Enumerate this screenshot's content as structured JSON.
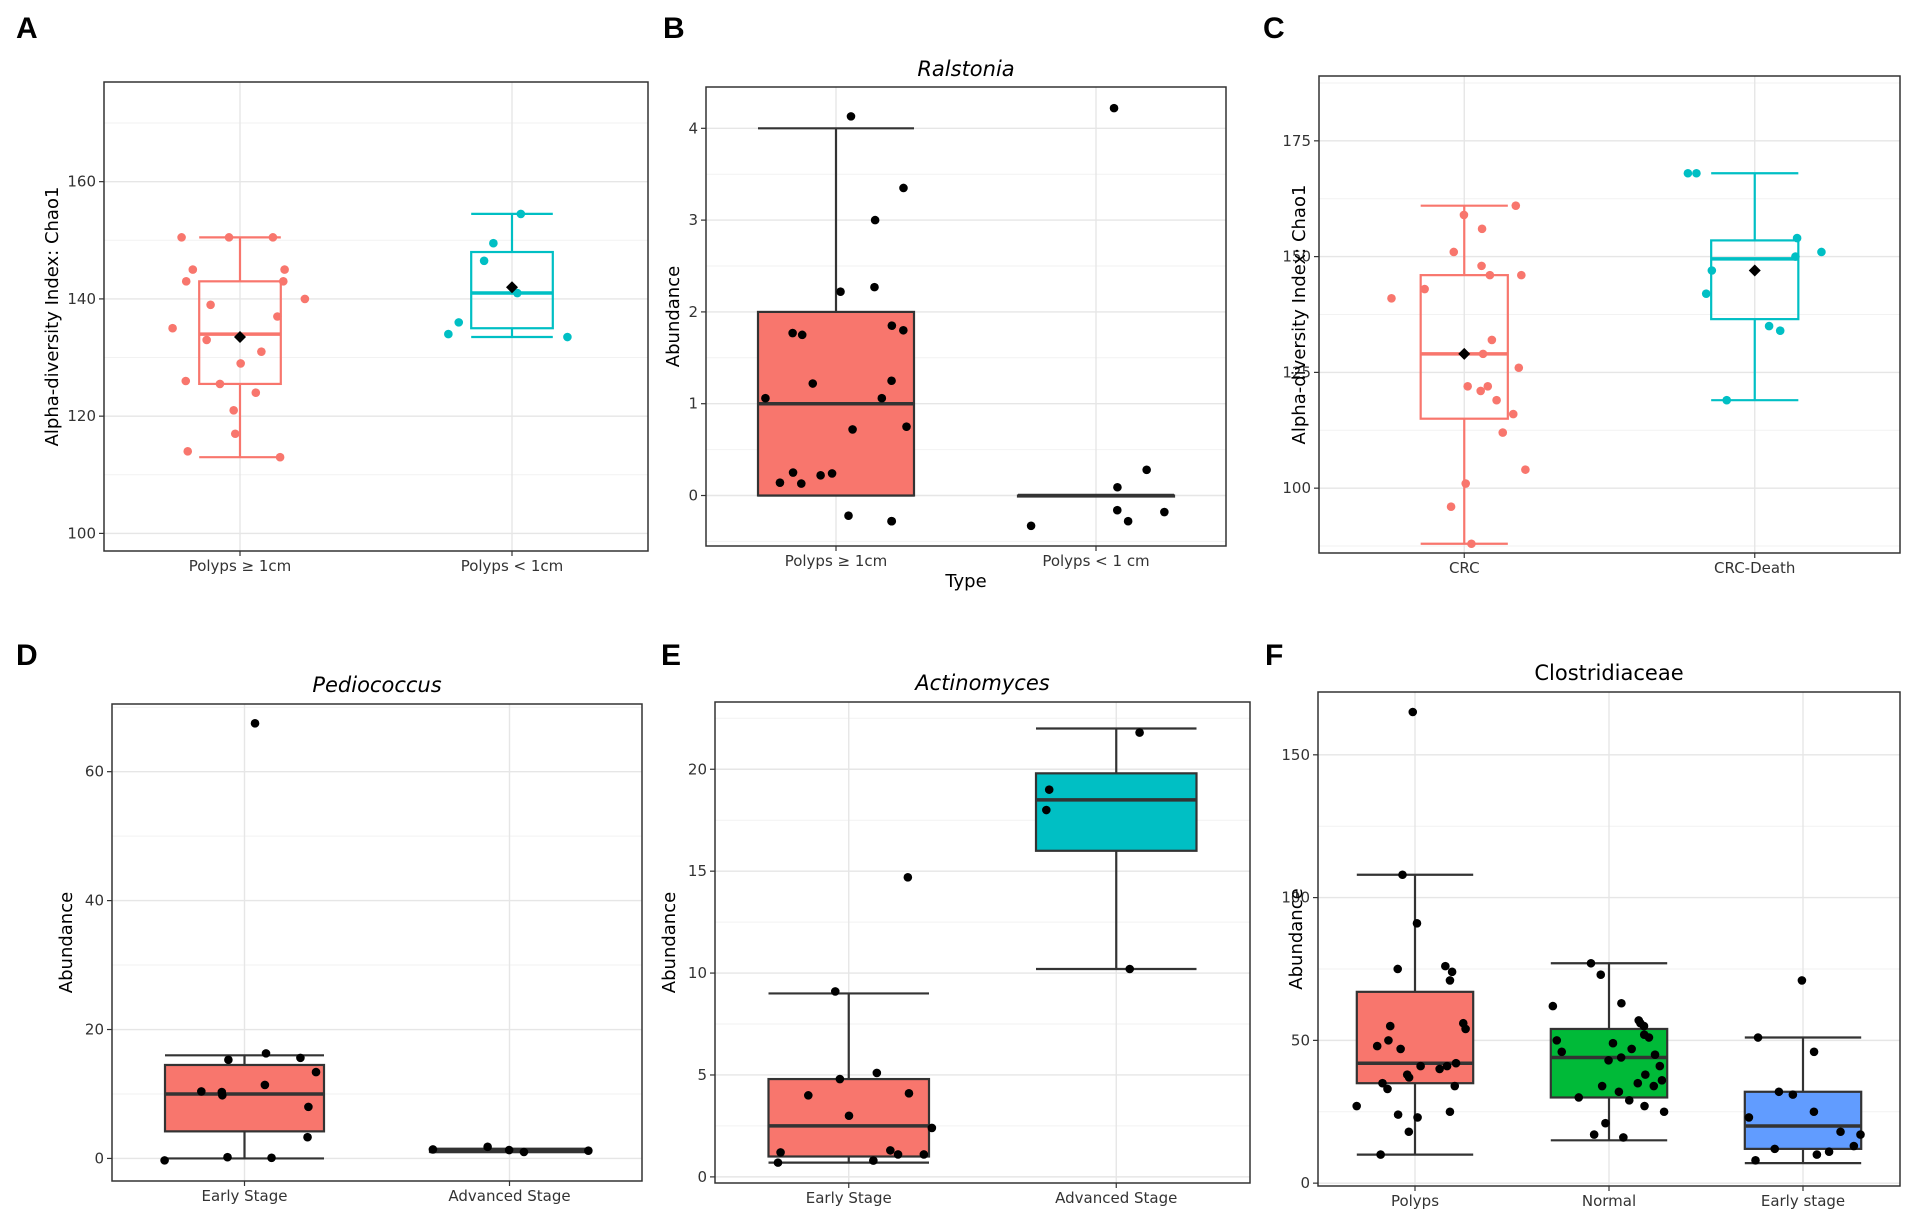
{
  "chart_data": [
    {
      "panel": "A",
      "type": "box",
      "title": "",
      "title_italic": false,
      "xlabel": "",
      "ylabel": "Alpha-diversity Index: Chao1",
      "ylim": [
        97,
        177
      ],
      "yticks": [
        100,
        120,
        140,
        160
      ],
      "fill_boxes": false,
      "show_mean": true,
      "categories": [
        "Polyps ≥ 1cm",
        "Polyps < 1cm"
      ],
      "colors": [
        "#F8766D",
        "#00BFC4"
      ],
      "boxes": [
        {
          "min": 113,
          "q1": 125.5,
          "median": 134,
          "q3": 143,
          "max": 150.5,
          "mean": 133.5,
          "points": [
            150.5,
            150.5,
            150.5,
            145,
            145,
            143,
            143,
            140,
            139,
            137,
            135,
            133,
            131,
            129,
            126,
            125.5,
            124,
            121,
            117,
            114,
            113
          ]
        },
        {
          "min": 133.5,
          "q1": 135,
          "median": 141,
          "q3": 148,
          "max": 154.5,
          "mean": 142,
          "points": [
            154.5,
            149.5,
            146.5,
            141,
            136,
            134,
            133.5
          ]
        }
      ]
    },
    {
      "panel": "B",
      "type": "box",
      "title": "Ralstonia",
      "title_italic": true,
      "xlabel": "Type",
      "ylabel": "Abundance",
      "ylim": [
        -0.55,
        4.45
      ],
      "yticks": [
        0,
        1,
        2,
        3,
        4
      ],
      "fill_boxes": true,
      "show_mean": false,
      "categories": [
        "Polyps ≥ 1cm",
        "Polyps < 1 cm"
      ],
      "colors": [
        "#F8766D",
        "#00BFC4"
      ],
      "boxes": [
        {
          "min": 0,
          "q1": 0,
          "median": 1.0,
          "q3": 2.0,
          "max": 4.0,
          "points": [
            4.13,
            3.35,
            3.0,
            2.27,
            2.22,
            1.85,
            1.8,
            1.77,
            1.75,
            1.25,
            1.22,
            1.06,
            1.06,
            0.75,
            0.72,
            0.25,
            0.24,
            0.22,
            0.14,
            0.13,
            -0.22,
            -0.28,
            -0.28
          ]
        },
        {
          "min": 0,
          "q1": 0,
          "median": 0,
          "q3": 0,
          "max": 0,
          "points": [
            4.22,
            0.28,
            0.09,
            -0.16,
            -0.18,
            -0.28,
            -0.33
          ]
        }
      ]
    },
    {
      "panel": "C",
      "type": "box",
      "title": "",
      "title_italic": false,
      "xlabel": "",
      "ylabel": "Alpha-diversity Index: Chao1",
      "ylim": [
        86,
        189
      ],
      "yticks": [
        100,
        125,
        150,
        175
      ],
      "fill_boxes": false,
      "show_mean": true,
      "categories": [
        "CRC",
        "CRC-Death"
      ],
      "colors": [
        "#F8766D",
        "#00BFC4"
      ],
      "boxes": [
        {
          "min": 88,
          "q1": 115,
          "median": 129,
          "q3": 146,
          "max": 161,
          "mean": 129,
          "points": [
            161,
            159,
            156,
            151,
            148,
            146,
            146,
            143,
            141,
            132,
            129,
            126,
            122,
            122,
            121,
            119,
            116,
            112,
            104,
            101,
            96,
            88
          ]
        },
        {
          "min": 119,
          "q1": 136.5,
          "median": 149.5,
          "q3": 153.5,
          "max": 168,
          "mean": 147,
          "points": [
            168,
            168,
            154,
            151,
            150,
            147,
            142,
            135,
            134,
            119
          ]
        }
      ]
    },
    {
      "panel": "D",
      "type": "box",
      "title": "Pediococcus",
      "title_italic": true,
      "xlabel": "",
      "ylabel": "Abundance",
      "ylim": [
        -3.5,
        70.5
      ],
      "yticks": [
        0,
        20,
        40,
        60
      ],
      "fill_boxes": true,
      "show_mean": false,
      "categories": [
        "Early Stage",
        "Advanced Stage"
      ],
      "colors": [
        "#F8766D",
        "#00BFC4"
      ],
      "boxes": [
        {
          "min": 0,
          "q1": 4.2,
          "median": 10,
          "q3": 14.5,
          "max": 16,
          "points": [
            67.5,
            16.3,
            15.6,
            15.3,
            13.4,
            11.4,
            10.4,
            10.3,
            9.8,
            8.0,
            3.3,
            0.2,
            0.1,
            -0.3
          ]
        },
        {
          "min": 1.0,
          "q1": 1.0,
          "median": 1.1,
          "q3": 1.3,
          "max": 1.5,
          "points": [
            1.8,
            1.4,
            1.3,
            1.2,
            1.0
          ]
        }
      ]
    },
    {
      "panel": "E",
      "type": "box",
      "title": "Actinomyces",
      "title_italic": true,
      "xlabel": "",
      "ylabel": "Abundance",
      "ylim": [
        -0.3,
        23.3
      ],
      "yticks": [
        0,
        5,
        10,
        15,
        20
      ],
      "fill_boxes": true,
      "show_mean": false,
      "categories": [
        "Early Stage",
        "Advanced Stage"
      ],
      "colors": [
        "#F8766D",
        "#00BFC4"
      ],
      "boxes": [
        {
          "min": 0.7,
          "q1": 1.0,
          "median": 2.5,
          "q3": 4.8,
          "max": 9.0,
          "points": [
            14.7,
            9.1,
            5.1,
            4.8,
            4.1,
            4.0,
            3.0,
            2.4,
            1.3,
            1.2,
            1.1,
            1.1,
            0.8,
            0.7
          ]
        },
        {
          "min": 10.2,
          "q1": 16.0,
          "median": 18.5,
          "q3": 19.8,
          "max": 22.0,
          "points": [
            21.8,
            19.0,
            18.0,
            10.2
          ]
        }
      ]
    },
    {
      "panel": "F",
      "type": "box",
      "title": "Clostridiaceae",
      "title_italic": false,
      "xlabel": "",
      "ylabel": "Abundance",
      "ylim": [
        -1,
        172
      ],
      "yticks": [
        0,
        50,
        100,
        150
      ],
      "fill_boxes": true,
      "show_mean": false,
      "categories": [
        "Polyps",
        "Normal",
        "Early stage"
      ],
      "colors": [
        "#F8766D",
        "#00BA38",
        "#619CFF"
      ],
      "boxes": [
        {
          "min": 10,
          "q1": 35,
          "median": 42,
          "q3": 67,
          "max": 108,
          "points": [
            165,
            108,
            91,
            76,
            75,
            74,
            71,
            56,
            55,
            54,
            50,
            48,
            47,
            42,
            41,
            41,
            40,
            38,
            37,
            35,
            34,
            33,
            27,
            25,
            24,
            23,
            18,
            10
          ]
        },
        {
          "min": 15,
          "q1": 30,
          "median": 44,
          "q3": 54,
          "max": 77,
          "points": [
            77,
            73,
            63,
            62,
            57,
            56,
            55,
            52,
            51,
            50,
            49,
            47,
            46,
            45,
            44,
            43,
            41,
            38,
            36,
            35,
            34,
            34,
            32,
            30,
            29,
            27,
            25,
            21,
            17,
            16
          ]
        },
        {
          "min": 7,
          "q1": 12,
          "median": 20,
          "q3": 32,
          "max": 51,
          "points": [
            71,
            51,
            46,
            32,
            31,
            25,
            23,
            18,
            17,
            13,
            12,
            11,
            10,
            8
          ]
        }
      ]
    }
  ]
}
